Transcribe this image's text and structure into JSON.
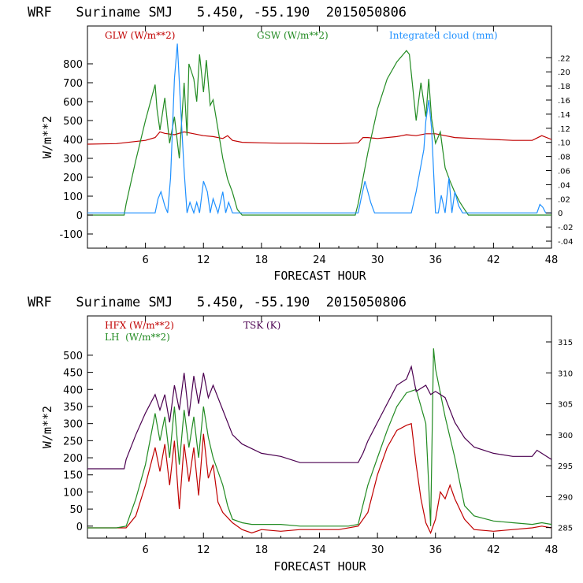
{
  "chart_data": [
    {
      "type": "line",
      "title": "WRF   Suriname SMJ   5.450, -55.190  2015050806",
      "xlabel": "FORECAST HOUR",
      "ylabel": "W/m**2",
      "xlim": [
        0,
        48
      ],
      "ylim": [
        -175,
        1000
      ],
      "x_ticks": [
        6,
        12,
        18,
        24,
        30,
        36,
        42,
        48
      ],
      "y_ticks": [
        -100,
        0,
        100,
        200,
        300,
        400,
        500,
        600,
        700,
        800
      ],
      "y2_label": "",
      "y2_lim": [
        -0.05,
        0.265
      ],
      "y2_ticks": [
        -0.04,
        -0.02,
        0,
        0.02,
        0.04,
        0.06,
        0.08,
        0.1,
        0.12,
        0.14,
        0.16,
        0.18,
        0.2,
        0.22
      ],
      "y2_tick_labels": [
        "-.04",
        "-.02",
        "0",
        ".02",
        ".04",
        ".06",
        ".08",
        ".10",
        ".12",
        ".14",
        ".16",
        ".18",
        ".20",
        ".22"
      ],
      "legend": [
        {
          "label": "GLW (W/m**2)",
          "color": "#c00000"
        },
        {
          "label": "GSW (W/m**2)",
          "color": "#228b22"
        },
        {
          "label": "Integrated cloud (mm)",
          "color": "#1e90ff"
        }
      ],
      "series": [
        {
          "name": "GLW (W/m**2)",
          "color": "#c00000",
          "axis": "left",
          "x": [
            0,
            3,
            6,
            7,
            7.5,
            8,
            9,
            10,
            11,
            12,
            13,
            14,
            14.5,
            15,
            16,
            18,
            20,
            22,
            24,
            26,
            28,
            28.5,
            29,
            30,
            32,
            33,
            34,
            35,
            36,
            37,
            38,
            40,
            42,
            44,
            46,
            47,
            48
          ],
          "y": [
            375,
            378,
            395,
            410,
            440,
            432,
            425,
            440,
            430,
            420,
            415,
            405,
            420,
            395,
            385,
            382,
            380,
            380,
            378,
            378,
            382,
            410,
            410,
            405,
            415,
            425,
            420,
            430,
            430,
            420,
            410,
            405,
            400,
            395,
            395,
            420,
            400
          ]
        },
        {
          "name": "GSW (W/m**2)",
          "color": "#228b22",
          "axis": "left",
          "x": [
            0,
            3.8,
            4,
            5,
            6,
            7,
            7.2,
            7.5,
            8,
            8.5,
            9,
            9.5,
            10,
            10.3,
            10.5,
            11,
            11.3,
            11.6,
            12,
            12.3,
            12.7,
            13,
            14,
            14.5,
            15,
            15.5,
            16,
            24,
            27.7,
            28,
            29,
            30,
            31,
            32,
            33,
            33.3,
            34,
            34.5,
            35,
            35.3,
            35.6,
            36,
            36.5,
            37,
            37.5,
            38,
            38.5,
            39,
            39.4,
            40,
            48
          ],
          "y": [
            0,
            0,
            60,
            290,
            500,
            690,
            560,
            450,
            620,
            380,
            520,
            300,
            700,
            420,
            800,
            720,
            600,
            850,
            650,
            820,
            580,
            610,
            300,
            190,
            120,
            30,
            0,
            0,
            0,
            60,
            330,
            560,
            720,
            810,
            870,
            850,
            500,
            700,
            520,
            720,
            510,
            380,
            440,
            250,
            180,
            120,
            70,
            30,
            0,
            0,
            0
          ]
        },
        {
          "name": "Integrated cloud (mm)",
          "color": "#1e90ff",
          "axis": "right",
          "x": [
            0,
            7,
            7.3,
            7.6,
            8,
            8.3,
            8.6,
            9,
            9.3,
            9.6,
            10,
            10.3,
            10.6,
            11,
            11.3,
            11.6,
            12,
            12.4,
            12.7,
            13,
            13.5,
            14,
            14.3,
            14.6,
            15,
            15.4,
            28,
            28.3,
            28.7,
            29,
            29.3,
            29.7,
            30,
            33.5,
            34,
            34.4,
            34.8,
            35,
            35.3,
            35.6,
            36,
            36.3,
            36.6,
            37,
            37.4,
            37.7,
            38,
            38.4,
            38.8,
            39.2,
            46.5,
            46.8,
            47.1,
            47.4,
            48
          ],
          "y": [
            0,
            0,
            0.02,
            0.03,
            0.01,
            0.0,
            0.05,
            0.19,
            0.24,
            0.16,
            0.06,
            0.0,
            0.015,
            0.0,
            0.015,
            0.0,
            0.045,
            0.03,
            0.0,
            0.02,
            0.0,
            0.03,
            0.0,
            0.015,
            0.0,
            0.0,
            0,
            0.02,
            0.045,
            0.03,
            0.015,
            0.0,
            0.0,
            0.0,
            0.03,
            0.06,
            0.09,
            0.13,
            0.16,
            0.12,
            0.0,
            0.0,
            0.025,
            0.0,
            0.05,
            0.0,
            0.03,
            0.01,
            0.0,
            0.0,
            0.0,
            0.012,
            0.008,
            0.0,
            0.0
          ]
        }
      ]
    },
    {
      "type": "line",
      "title": "WRF   Suriname SMJ   5.450, -55.190  2015050806",
      "xlabel": "FORECAST HOUR",
      "ylabel": "W/m**2",
      "xlim": [
        0,
        48
      ],
      "ylim": [
        -35,
        615
      ],
      "x_ticks": [
        6,
        12,
        18,
        24,
        30,
        36,
        42,
        48
      ],
      "y_ticks": [
        0,
        50,
        100,
        150,
        200,
        250,
        300,
        350,
        400,
        450,
        500
      ],
      "y2_label": "",
      "y2_lim": [
        283.3,
        319.2
      ],
      "y2_ticks": [
        285,
        290,
        295,
        300,
        305,
        310,
        315
      ],
      "y2_tick_labels": [
        "285",
        "290",
        "295",
        "300",
        "305",
        "310",
        "315"
      ],
      "legend": [
        {
          "label": "HFX (W/m**2)",
          "color": "#c00000"
        },
        {
          "label": "LH  (W/m**2)",
          "color": "#228b22"
        },
        {
          "label": "TSK (K)",
          "color": "#4b0050"
        }
      ],
      "series": [
        {
          "name": "HFX (W/m**2)",
          "color": "#c00000",
          "axis": "left",
          "x": [
            0,
            3,
            4,
            5,
            6,
            7,
            7.5,
            8,
            8.5,
            9,
            9.5,
            10,
            10.5,
            11,
            11.5,
            12,
            12.5,
            13,
            13.5,
            14,
            15,
            16,
            17,
            18,
            20,
            22,
            24,
            26,
            28,
            29,
            30,
            31,
            32,
            33,
            33.5,
            34,
            34.5,
            35,
            35.5,
            36,
            36.5,
            37,
            37.5,
            38,
            39,
            40,
            42,
            44,
            46,
            47,
            48
          ],
          "y": [
            -5,
            -5,
            -5,
            30,
            120,
            230,
            160,
            240,
            120,
            250,
            50,
            240,
            130,
            230,
            90,
            270,
            140,
            180,
            70,
            40,
            10,
            -10,
            -20,
            -10,
            -15,
            -10,
            -10,
            -10,
            0,
            40,
            150,
            230,
            280,
            295,
            300,
            180,
            80,
            10,
            -20,
            20,
            100,
            80,
            120,
            80,
            20,
            -10,
            -15,
            -10,
            -5,
            0,
            -5
          ]
        },
        {
          "name": "LH  (W/m**2)",
          "color": "#228b22",
          "axis": "left",
          "x": [
            0,
            3,
            4,
            5,
            6,
            7,
            7.5,
            8,
            8.5,
            9,
            9.5,
            10,
            10.5,
            11,
            11.5,
            12,
            12.5,
            13,
            13.5,
            14,
            14.5,
            15,
            16,
            17,
            18,
            20,
            22,
            24,
            27,
            28,
            29,
            30,
            31,
            32,
            33,
            34,
            35,
            35.5,
            35.8,
            36,
            37,
            38,
            39,
            40,
            42,
            44,
            46,
            47,
            48
          ],
          "y": [
            -5,
            -5,
            0,
            80,
            180,
            330,
            250,
            320,
            200,
            350,
            180,
            340,
            230,
            320,
            200,
            350,
            260,
            200,
            160,
            120,
            60,
            20,
            10,
            5,
            5,
            5,
            0,
            0,
            0,
            5,
            120,
            200,
            280,
            350,
            390,
            400,
            300,
            0,
            520,
            460,
            320,
            200,
            60,
            30,
            15,
            10,
            5,
            10,
            5
          ]
        },
        {
          "name": "TSK (K)",
          "color": "#4b0050",
          "axis": "right",
          "x": [
            0,
            3,
            3.8,
            4,
            5,
            6,
            7,
            7.5,
            8,
            8.5,
            9,
            9.5,
            10,
            10.5,
            11,
            11.5,
            12,
            12.5,
            13,
            14,
            15,
            16,
            18,
            20,
            22,
            24,
            26,
            28,
            28.5,
            29,
            30,
            31,
            32,
            33,
            33.5,
            34,
            35,
            35.5,
            36,
            37,
            38,
            39,
            40,
            42,
            44,
            46,
            46.5,
            47,
            48
          ],
          "y": [
            294.5,
            294.5,
            294.5,
            296,
            300,
            303.5,
            306.5,
            304,
            306.5,
            302,
            308,
            304,
            310,
            303,
            309.5,
            305,
            310,
            306,
            308,
            304,
            300,
            298.5,
            297,
            296.5,
            295.5,
            295.5,
            295.5,
            295.5,
            297,
            299,
            302,
            305,
            308,
            309,
            311,
            307,
            308,
            306.5,
            307,
            306,
            302,
            299.5,
            298,
            297,
            296.5,
            296.5,
            297.5,
            297,
            296
          ]
        }
      ]
    }
  ]
}
